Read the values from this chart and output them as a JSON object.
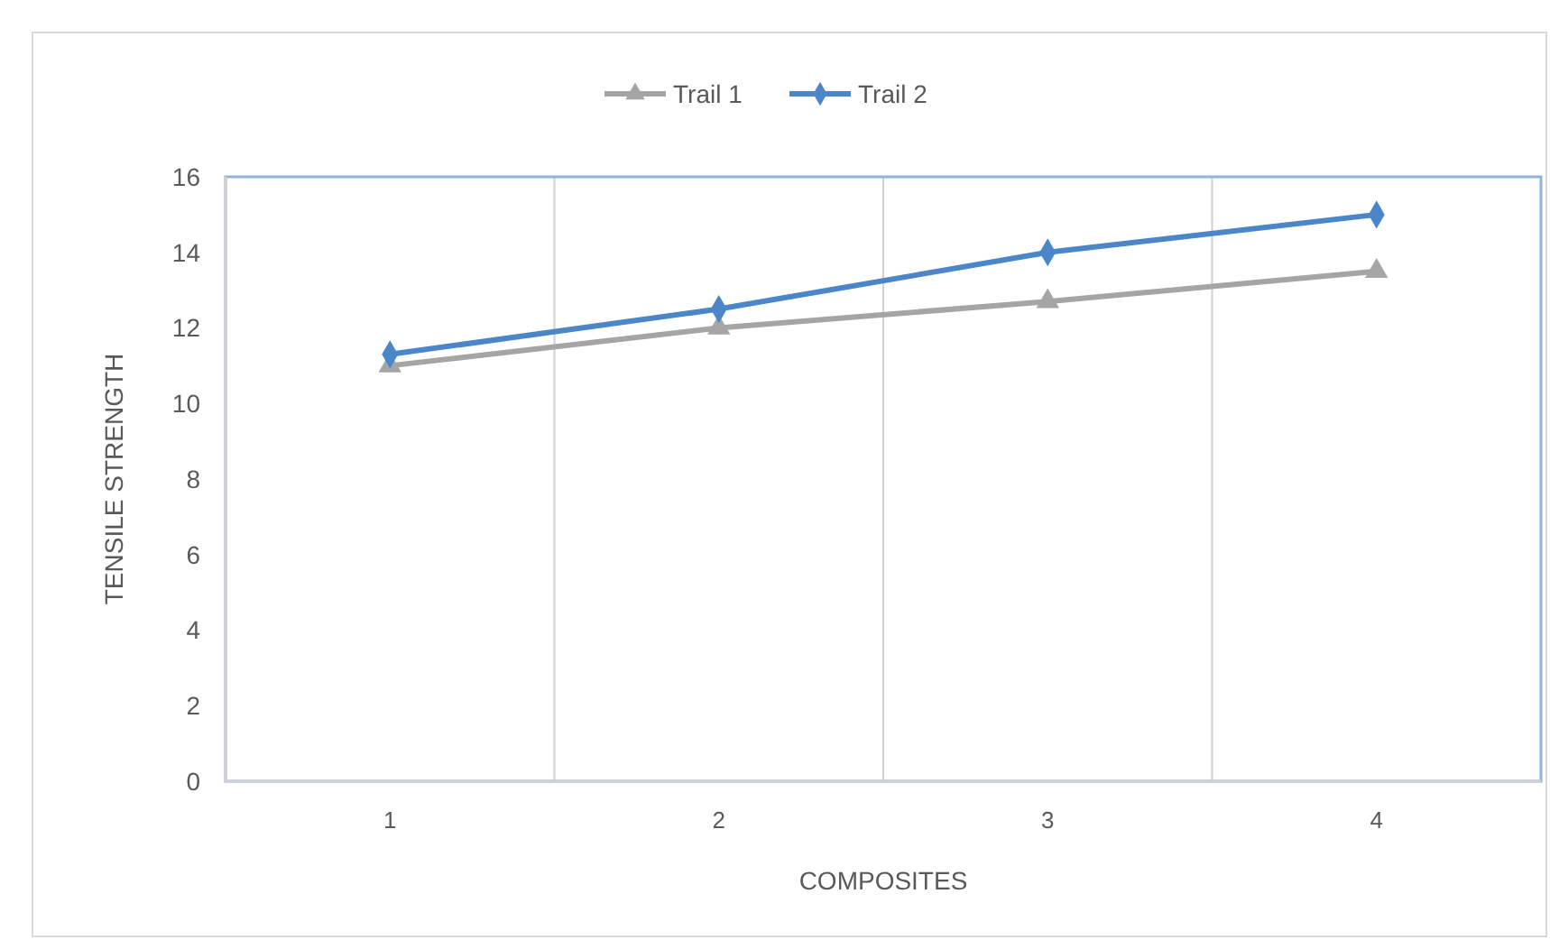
{
  "chart_data": {
    "type": "line",
    "xlabel": "COMPOSITES",
    "ylabel": "TENSILE STRENGTH",
    "categories": [
      "1",
      "2",
      "3",
      "4"
    ],
    "series": [
      {
        "name": "Trail 1",
        "color": "#a5a5a5",
        "marker": "triangle",
        "values": [
          11.0,
          12.0,
          12.7,
          13.5
        ]
      },
      {
        "name": "Trail 2",
        "color": "#4a86c8",
        "marker": "diamond",
        "values": [
          11.3,
          12.5,
          14.0,
          15.0
        ]
      }
    ],
    "ylim": [
      0,
      16
    ],
    "yticks": [
      0,
      2,
      4,
      6,
      8,
      10,
      12,
      14,
      16
    ],
    "grid": "x",
    "legend": "top"
  }
}
